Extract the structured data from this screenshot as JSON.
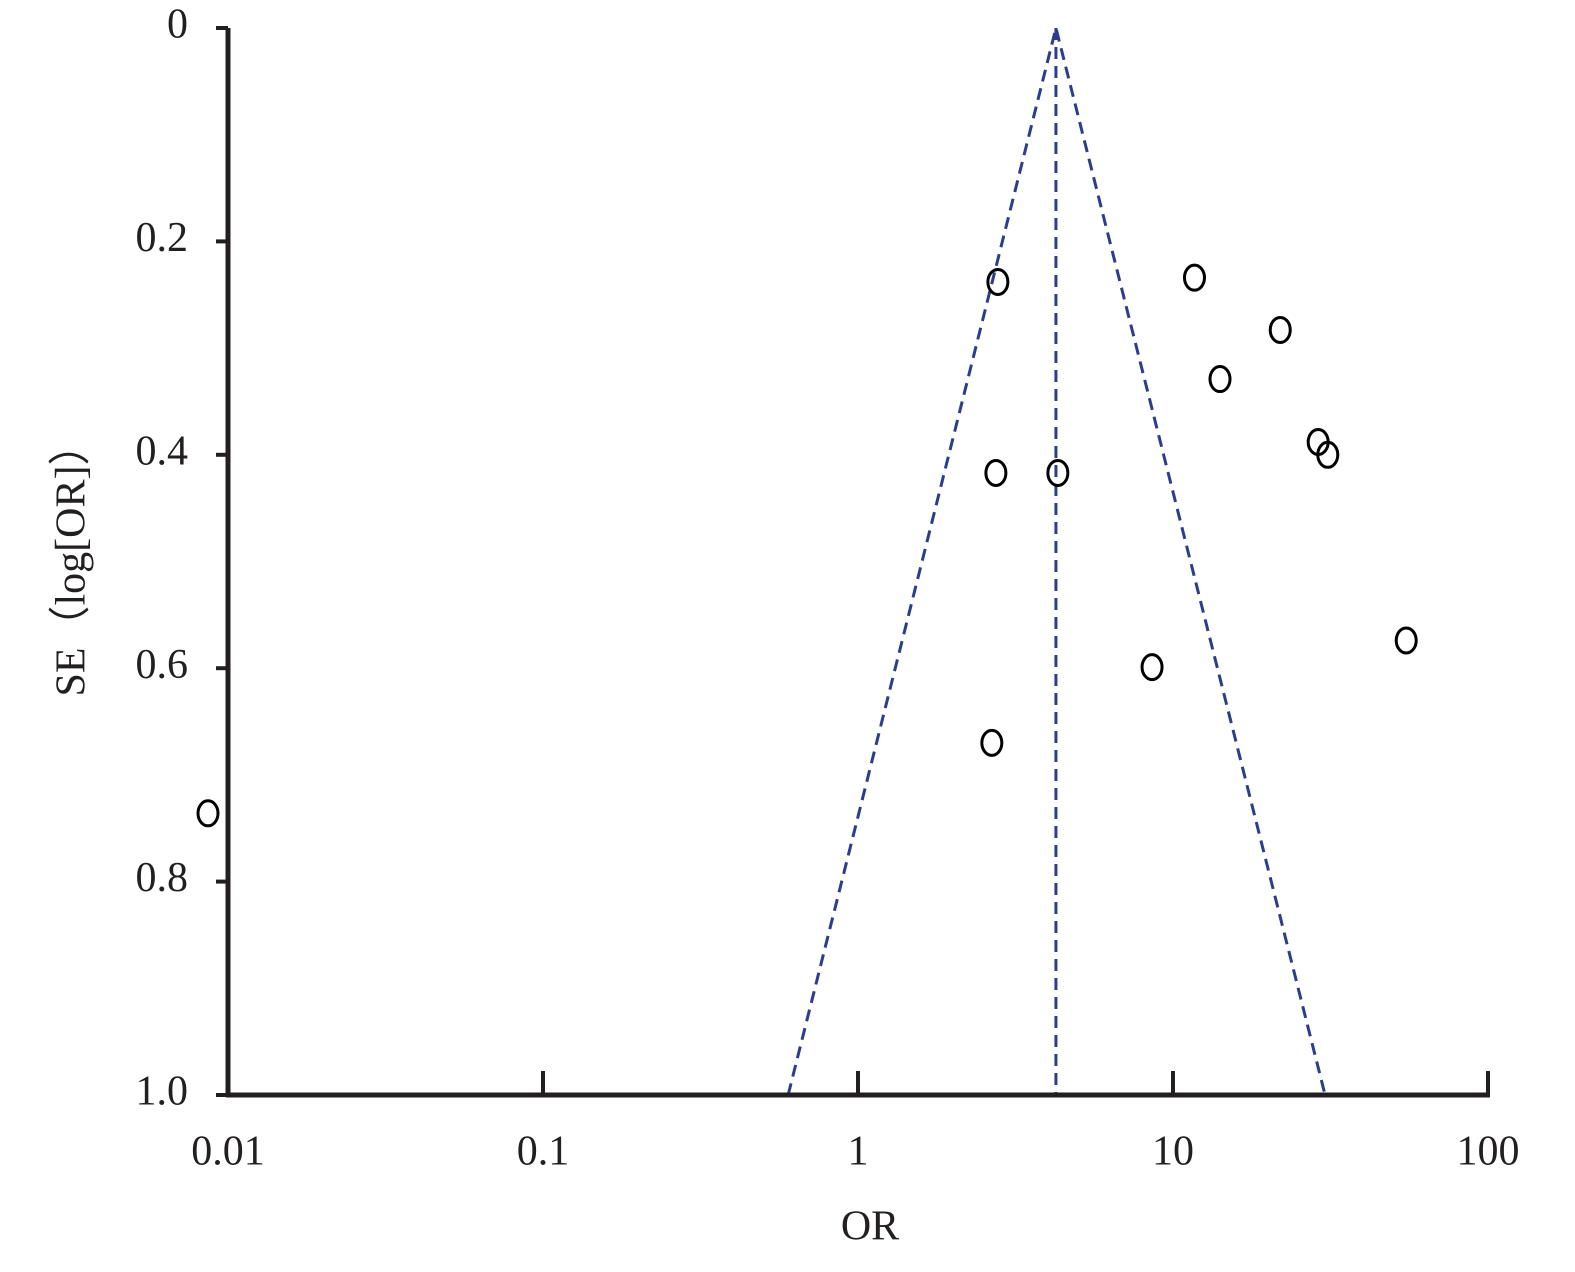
{
  "chart_data": {
    "type": "scatter",
    "xlabel": "OR",
    "ylabel": "SE（log[OR]）",
    "xscale": "log",
    "yinverted": true,
    "xlim": [
      0.01,
      100
    ],
    "xticks": [
      0.01,
      0.1,
      1,
      10,
      100
    ],
    "ylim": [
      0,
      1
    ],
    "yticks": [
      0,
      0.2,
      0.4,
      0.6,
      0.8,
      {
        "value": 1,
        "label": "1.0"
      }
    ],
    "series": [
      {
        "color": "#000000",
        "x": [
          2.78,
          11.7,
          21.9,
          14.1,
          28.9,
          31.0,
          2.74,
          4.31,
          55.0,
          8.58,
          2.66,
          0.00864
        ],
        "values": [
          0.238,
          0.234,
          0.283,
          0.329,
          0.388,
          0.4,
          0.417,
          0.417,
          0.574,
          0.599,
          0.67,
          0.736
        ]
      }
    ],
    "funnel_lines": [
      {
        "color": "#2b3d8f",
        "x": [
          0.6,
          4.25,
          30.4
        ],
        "values": [
          1,
          0,
          1
        ]
      },
      {
        "color": "#2b3d8f",
        "x": [
          4.25,
          4.25
        ],
        "values": [
          0,
          1
        ]
      }
    ]
  }
}
